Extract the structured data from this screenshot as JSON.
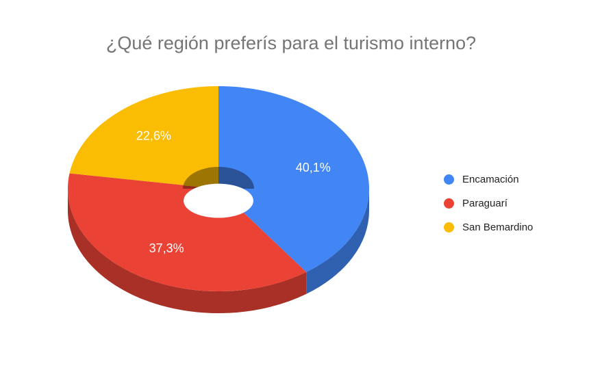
{
  "chart_data": {
    "type": "pie",
    "title": "¿Qué región preferís para el turismo interno?",
    "categories": [
      "Encamación",
      "Paraguarí",
      "San Bemardino"
    ],
    "values": [
      40.1,
      37.3,
      22.6
    ],
    "labels": [
      "40,1%",
      "37,3%",
      "22,6%"
    ],
    "colors": [
      "#4285F4",
      "#EA4335",
      "#FBBC04"
    ],
    "donut": true,
    "three_d": true,
    "legend_position": "right"
  }
}
